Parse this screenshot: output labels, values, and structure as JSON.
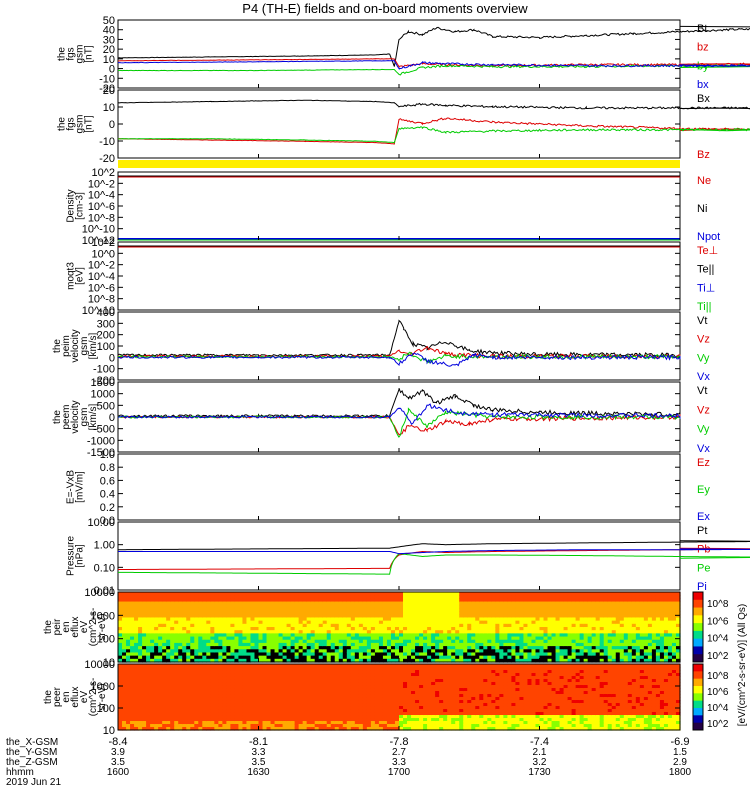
{
  "title": "P4 (TH-E) fields and on-board moments overview",
  "time_axis": {
    "ticks": [
      "1600",
      "1630",
      "1700",
      "1730",
      "1800"
    ],
    "row_labels": [
      "the_X-GSM",
      "the_Y-GSM",
      "the_Z-GSM",
      "hhmm"
    ],
    "rows": [
      [
        "-8.4",
        "-8.1",
        "-7.8",
        "-7.4",
        "-6.9"
      ],
      [
        "3.9",
        "3.3",
        "2.7",
        "2.1",
        "1.5"
      ],
      [
        "3.5",
        "3.5",
        "3.3",
        "3.2",
        "2.9"
      ]
    ],
    "date": "2019 Jun 21"
  },
  "chart_data": [
    {
      "type": "line",
      "id": "fgs_gsm_mag",
      "ylabel": [
        "the",
        "fgs",
        "gsm",
        "[nT]"
      ],
      "ylim": [
        -20,
        50
      ],
      "yticks": [
        "50",
        "40",
        "30",
        "20",
        "10",
        "0",
        "-10",
        "-20"
      ],
      "legend": [
        {
          "name": "Bt",
          "color": "#000000"
        },
        {
          "name": "bz",
          "color": "#dd0000"
        },
        {
          "name": "by",
          "color": "#00cc00"
        },
        {
          "name": "bx",
          "color": "#0000dd"
        }
      ],
      "series": [
        {
          "name": "Bt",
          "color": "#000000",
          "x": [
            1600,
            1620,
            1640,
            1655,
            1658,
            1659,
            1700,
            1702,
            1705,
            1708,
            1712,
            1716,
            1720,
            1730,
            1740,
            1750,
            1760,
            1770,
            1780,
            1790,
            1800
          ],
          "y": [
            11,
            12,
            13,
            14,
            15,
            2,
            30,
            38,
            35,
            42,
            38,
            40,
            33,
            32,
            34,
            36,
            38,
            40,
            41,
            42,
            43
          ]
        },
        {
          "name": "bz",
          "color": "#dd0000",
          "x": [
            1600,
            1630,
            1655,
            1659,
            1700,
            1705,
            1710,
            1720,
            1740,
            1760,
            1780,
            1800
          ],
          "y": [
            8,
            9,
            10,
            10,
            2,
            5,
            4,
            3,
            4,
            4,
            5,
            5
          ]
        },
        {
          "name": "by",
          "color": "#00cc00",
          "x": [
            1600,
            1630,
            1655,
            1659,
            1700,
            1705,
            1710,
            1720,
            1740,
            1760,
            1780,
            1800
          ],
          "y": [
            -2,
            -2,
            -1,
            -1,
            -6,
            1,
            3,
            2,
            2,
            3,
            3,
            2
          ]
        },
        {
          "name": "bx",
          "color": "#0000dd",
          "x": [
            1600,
            1630,
            1655,
            1659,
            1700,
            1705,
            1710,
            1720,
            1740,
            1760,
            1780,
            1800
          ],
          "y": [
            6,
            7,
            8,
            8,
            0,
            6,
            5,
            4,
            3,
            3,
            3,
            3
          ]
        }
      ]
    },
    {
      "type": "line",
      "id": "fgs_gsm_components",
      "ylabel": [
        "the",
        "fgs",
        "gsm",
        "[nT]"
      ],
      "ylim": [
        -25,
        28
      ],
      "yticks": [
        "20",
        "10",
        "0",
        "-10",
        "-20"
      ],
      "legend": [
        {
          "name": "Bx",
          "color": "#000000"
        },
        {
          "name": "Bz",
          "color": "#dd0000"
        }
      ],
      "series": [
        {
          "name": "Bx",
          "color": "#000000",
          "x": [
            1600,
            1620,
            1640,
            1655,
            1659,
            1700,
            1705,
            1710,
            1720,
            1740,
            1760,
            1780,
            1800
          ],
          "y": [
            18,
            19,
            20,
            19,
            18,
            15,
            17,
            16,
            15,
            14,
            14,
            14,
            14
          ]
        },
        {
          "name": "Bz",
          "color": "#dd0000",
          "x": [
            1600,
            1620,
            1640,
            1655,
            1659,
            1700,
            1705,
            1710,
            1720,
            1740,
            1760,
            1780,
            1800
          ],
          "y": [
            -10,
            -11,
            -12,
            -13,
            -14,
            5,
            2,
            6,
            3,
            0,
            -2,
            -3,
            -3
          ]
        },
        {
          "name": "By",
          "color": "#00cc00",
          "x": [
            1600,
            1620,
            1640,
            1655,
            1659,
            1700,
            1705,
            1710,
            1720,
            1740,
            1760,
            1780,
            1800
          ],
          "y": [
            -10,
            -10,
            -11,
            -12,
            -13,
            -2,
            -1,
            -5,
            -4,
            -3,
            -3,
            -3,
            -3
          ]
        }
      ]
    },
    {
      "type": "line",
      "id": "density",
      "ylabel": [
        "Density",
        "[cm-3]"
      ],
      "yticks": [
        "10^2",
        "10^-2",
        "10^-4",
        "10^-6",
        "10^-8",
        "10^-10",
        "10^-12"
      ],
      "legend": [
        {
          "name": "Ne",
          "color": "#dd0000"
        },
        {
          "name": "Ni",
          "color": "#000000"
        },
        {
          "name": "Npot",
          "color": "#0000dd"
        }
      ]
    },
    {
      "type": "line",
      "id": "temperature",
      "ylabel": [
        "moqt3",
        "[eV]"
      ],
      "yticks": [
        "10^2",
        "10^0",
        "10^-2",
        "10^-4",
        "10^-6",
        "10^-8",
        "10^-10"
      ],
      "legend": [
        {
          "name": "Te⊥",
          "color": "#dd0000"
        },
        {
          "name": "Te||",
          "color": "#000000"
        },
        {
          "name": "Ti⊥",
          "color": "#0000dd"
        },
        {
          "name": "Ti||",
          "color": "#00cc00"
        }
      ]
    },
    {
      "type": "line",
      "id": "peim_velocity",
      "ylabel": [
        "the",
        "peim",
        "velocity",
        "gsm",
        "[km/s]"
      ],
      "ylim": [
        -200,
        400
      ],
      "yticks": [
        "400",
        "300",
        "200",
        "100",
        "0",
        "-100",
        "-200"
      ],
      "legend": [
        {
          "name": "Vt",
          "color": "#000000"
        },
        {
          "name": "Vz",
          "color": "#dd0000"
        },
        {
          "name": "Vy",
          "color": "#00cc00"
        },
        {
          "name": "Vx",
          "color": "#0000dd"
        }
      ],
      "series": [
        {
          "name": "Vt",
          "color": "#000000",
          "x": [
            1600,
            1630,
            1658,
            1700,
            1701,
            1703,
            1706,
            1710,
            1715,
            1720,
            1730,
            1760,
            1800
          ],
          "y": [
            20,
            20,
            20,
            320,
            250,
            120,
            80,
            140,
            60,
            40,
            25,
            20,
            20
          ]
        },
        {
          "name": "Vz",
          "color": "#dd0000",
          "x": [
            1600,
            1630,
            1658,
            1700,
            1702,
            1706,
            1710,
            1720,
            1760,
            1800
          ],
          "y": [
            10,
            10,
            10,
            60,
            20,
            90,
            30,
            10,
            10,
            10
          ]
        },
        {
          "name": "Vy",
          "color": "#00cc00",
          "x": [
            1600,
            1630,
            1658,
            1700,
            1702,
            1706,
            1710,
            1720,
            1760,
            1800
          ],
          "y": [
            5,
            5,
            5,
            -20,
            40,
            -40,
            10,
            5,
            5,
            5
          ]
        },
        {
          "name": "Vx",
          "color": "#0000dd",
          "x": [
            1600,
            1630,
            1658,
            1700,
            1703,
            1706,
            1712,
            1716,
            1720,
            1760,
            1800
          ],
          "y": [
            0,
            0,
            0,
            -60,
            40,
            -30,
            -80,
            20,
            0,
            0,
            0
          ]
        }
      ]
    },
    {
      "type": "line",
      "id": "peem_velocity",
      "ylabel": [
        "the",
        "peem",
        "velocity",
        "gsm",
        "[km/s]"
      ],
      "ylim": [
        -1500,
        1500
      ],
      "yticks": [
        "1500",
        "1000",
        "500",
        "0",
        "-500",
        "-1000",
        "-1500"
      ],
      "legend": [
        {
          "name": "Vt",
          "color": "#000000"
        },
        {
          "name": "Vz",
          "color": "#dd0000"
        },
        {
          "name": "Vy",
          "color": "#00cc00"
        },
        {
          "name": "Vx",
          "color": "#0000dd"
        }
      ],
      "series": [
        {
          "name": "Vt",
          "color": "#000000",
          "x": [
            1600,
            1630,
            1658,
            1700,
            1702,
            1705,
            1708,
            1712,
            1716,
            1720,
            1730,
            1760,
            1800
          ],
          "y": [
            50,
            50,
            50,
            1200,
            800,
            1100,
            600,
            900,
            500,
            300,
            200,
            100,
            100
          ]
        },
        {
          "name": "Vz",
          "color": "#dd0000",
          "x": [
            1600,
            1630,
            1658,
            1700,
            1702,
            1706,
            1710,
            1715,
            1720,
            1760,
            1800
          ],
          "y": [
            0,
            0,
            0,
            -800,
            -400,
            -600,
            -200,
            -300,
            -100,
            0,
            0
          ]
        },
        {
          "name": "Vy",
          "color": "#00cc00",
          "x": [
            1600,
            1630,
            1658,
            1700,
            1702,
            1706,
            1710,
            1720,
            1760,
            1800
          ],
          "y": [
            0,
            0,
            0,
            -900,
            300,
            -400,
            200,
            0,
            0,
            0
          ]
        },
        {
          "name": "Vx",
          "color": "#0000dd",
          "x": [
            1600,
            1630,
            1658,
            1700,
            1703,
            1706,
            1712,
            1720,
            1760,
            1800
          ],
          "y": [
            0,
            0,
            0,
            400,
            -300,
            500,
            200,
            100,
            50,
            50
          ]
        }
      ]
    },
    {
      "type": "line",
      "id": "e_field",
      "ylabel": [
        "E=-VxB",
        "[mV/m]"
      ],
      "ylim": [
        0,
        1
      ],
      "yticks": [
        "1.0",
        "0.8",
        "0.6",
        "0.4",
        "0.2",
        "0.0"
      ],
      "legend": [
        {
          "name": "Ez",
          "color": "#dd0000"
        },
        {
          "name": "Ey",
          "color": "#00cc00"
        },
        {
          "name": "Ex",
          "color": "#0000dd"
        }
      ]
    },
    {
      "type": "line",
      "id": "pressure",
      "ylabel": [
        "Pressure",
        "[nPa]"
      ],
      "yscale": "log",
      "ylim": [
        0.01,
        10
      ],
      "yticks": [
        "10.00",
        "1.00",
        "0.10",
        "0.01"
      ],
      "legend": [
        {
          "name": "Pt",
          "color": "#000000"
        },
        {
          "name": "Pb",
          "color": "#dd0000"
        },
        {
          "name": "Pe",
          "color": "#00cc00"
        },
        {
          "name": "Pi",
          "color": "#0000dd"
        }
      ],
      "series": [
        {
          "name": "Pt",
          "color": "#000000",
          "x": [
            1600,
            1630,
            1658,
            1700,
            1705,
            1710,
            1720,
            1740,
            1760,
            1780,
            1800
          ],
          "y": [
            0.6,
            0.65,
            0.7,
            0.8,
            1.1,
            1.0,
            1.1,
            1.2,
            1.3,
            1.4,
            1.5
          ]
        },
        {
          "name": "Pb",
          "color": "#dd0000",
          "x": [
            1600,
            1630,
            1658,
            1700,
            1705,
            1710,
            1720,
            1740,
            1760,
            1780,
            1800
          ],
          "y": [
            0.08,
            0.085,
            0.09,
            0.35,
            0.5,
            0.45,
            0.5,
            0.55,
            0.6,
            0.65,
            0.7
          ]
        },
        {
          "name": "Pe",
          "color": "#00cc00",
          "x": [
            1600,
            1630,
            1658,
            1700,
            1705,
            1710,
            1720,
            1740,
            1760,
            1780,
            1800
          ],
          "y": [
            0.06,
            0.055,
            0.05,
            0.4,
            0.3,
            0.35,
            0.35,
            0.33,
            0.3,
            0.28,
            0.25
          ]
        },
        {
          "name": "Pi",
          "color": "#0000dd",
          "x": [
            1600,
            1630,
            1658,
            1700,
            1705,
            1710,
            1720,
            1740,
            1760,
            1780,
            1800
          ],
          "y": [
            0.5,
            0.5,
            0.5,
            0.4,
            0.45,
            0.5,
            0.55,
            0.6,
            0.6,
            0.62,
            0.65
          ]
        }
      ]
    },
    {
      "type": "heatmap",
      "id": "peir_eflux",
      "ylabel": [
        "the",
        "peir",
        "en",
        "eflux",
        "eV",
        "(cm^2-s-",
        "sr-eV)"
      ],
      "yscale": "log",
      "yticks": [
        "10000",
        "1000",
        "100",
        "10"
      ],
      "colorbar_ticks": [
        "10^8",
        "10^6",
        "10^4",
        "10^2"
      ]
    },
    {
      "type": "heatmap",
      "id": "peer_eflux",
      "ylabel": [
        "the",
        "peer",
        "en",
        "eflux",
        "eV",
        "(cm^2-s-",
        "sr-eV)"
      ],
      "yscale": "log",
      "yticks": [
        "10000",
        "1000",
        "100",
        "10"
      ],
      "colorbar_ticks": [
        "10^8",
        "10^6",
        "10^4",
        "10^2"
      ]
    }
  ],
  "colorbar_label": "[eV/(cm^2-s-sr-eV)] (All Qs)",
  "colors": {
    "black": "#000000",
    "red": "#dd0000",
    "green": "#00cc00",
    "blue": "#0000dd",
    "yellow": "#ffee00"
  }
}
